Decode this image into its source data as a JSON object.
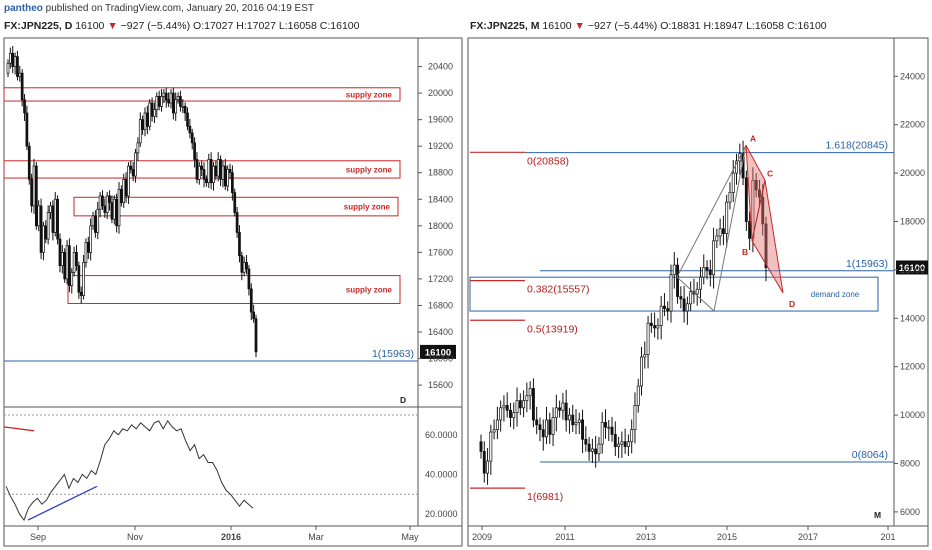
{
  "header": {
    "user": "pantheo",
    "published": "published on TradingView.com, January 20, 2016 04:19 EST"
  },
  "colors": {
    "red": "#c62828",
    "blue": "#2962a8",
    "axis": "#444444",
    "candle_up": "#ffffff",
    "candle_down": "#111111"
  },
  "chart_data": [
    {
      "type": "candlestick",
      "panel": "daily",
      "title": {
        "symbol": "FX:JPN225, D",
        "last": "16100",
        "change": "−927 (−5.44%)",
        "open": "O:17027",
        "high": "H:17027",
        "low": "L:16058",
        "close": "C:16100"
      },
      "ylim": [
        15300,
        20800
      ],
      "y_ticks": [
        "20400",
        "20000",
        "19600",
        "19200",
        "18800",
        "18400",
        "18000",
        "17600",
        "17200",
        "16800",
        "16400",
        "16000",
        "15600"
      ],
      "x_ticks": [
        "Sep",
        "Nov",
        "2016",
        "Mar",
        "May"
      ],
      "current_price": "16100",
      "level_line": {
        "label": "1(15963)",
        "value": 15963
      },
      "supply_zones": [
        {
          "label": "supply zone",
          "from": 19880,
          "to": 20080
        },
        {
          "label": "supply zone",
          "from": 18720,
          "to": 18980
        },
        {
          "label": "supply zone",
          "from": 18150,
          "to": 18430
        },
        {
          "label": "supply zone",
          "from": 16830,
          "to": 17250
        }
      ],
      "markers": [
        "D"
      ],
      "series_close": [
        20450,
        20600,
        20400,
        20550,
        20250,
        20300,
        19900,
        19700,
        19200,
        18700,
        18300,
        18900,
        18000,
        18300,
        17600,
        18000,
        17800,
        18200,
        18300,
        17900,
        18400,
        17800,
        17400,
        17600,
        17200,
        17700,
        17100,
        17300,
        17600,
        17400,
        17000,
        16950,
        17450,
        17750,
        17600,
        18000,
        18150,
        17900,
        18250,
        18450,
        18300,
        18200,
        18450,
        18350,
        18100,
        18400,
        18000,
        18550,
        18350,
        18700,
        18450,
        18900,
        18850,
        18750,
        19100,
        19250,
        19600,
        19450,
        19700,
        19500,
        19850,
        19650,
        19750,
        19950,
        19800,
        19950,
        20000,
        19900,
        19850,
        20000,
        19700,
        19900,
        19950,
        19800,
        19800,
        19700,
        19500,
        19400,
        19250,
        19000,
        18700,
        18900,
        18850,
        18700,
        18650,
        19000,
        18650,
        18900,
        18750,
        19000,
        18700,
        18900,
        18600,
        18850,
        18800,
        18500,
        18200,
        17900,
        17550,
        17300,
        17450,
        17350,
        17050,
        16700,
        16600,
        16100
      ]
    },
    {
      "type": "line",
      "panel": "oscillator",
      "y_ticks": [
        "60.0000",
        "40.0000",
        "20.0000"
      ],
      "ylim": [
        15,
        72
      ],
      "values": [
        34,
        29,
        25,
        20,
        17,
        23,
        26,
        28,
        25,
        27,
        31,
        34,
        37,
        40,
        33,
        38,
        36,
        40,
        38,
        42,
        40,
        47,
        55,
        58,
        62,
        60,
        63,
        62,
        65,
        63,
        66,
        64,
        62,
        66,
        67,
        63,
        67,
        64,
        62,
        63,
        57,
        52,
        55,
        48,
        50,
        46,
        46,
        42,
        36,
        32,
        30,
        27,
        24,
        27,
        25,
        23
      ]
    },
    {
      "type": "candlestick",
      "panel": "monthly",
      "title": {
        "symbol": "FX:JPN225, M",
        "last": "16100",
        "change": "−927 (−5.44%)",
        "open": "O:18831",
        "high": "H:18947",
        "low": "L:16058",
        "close": "C:16100"
      },
      "ylim": [
        5500,
        25500
      ],
      "y_ticks": [
        "24000",
        "22000",
        "20000",
        "18000",
        "16000",
        "14000",
        "12000",
        "10000",
        "8000",
        "6000"
      ],
      "x_ticks": [
        "2009",
        "2011",
        "2013",
        "2015",
        "2017",
        "201"
      ],
      "current_price": "16100",
      "fib_red": [
        {
          "label": "0(20858)",
          "value": 20858
        },
        {
          "label": "0.382(15557)",
          "value": 15557
        },
        {
          "label": "0.5(13919)",
          "value": 13919
        },
        {
          "label": "1(6981)",
          "value": 6981
        }
      ],
      "fib_blue": [
        {
          "label": "1.618(20845)",
          "value": 20845
        },
        {
          "label": "1(15963)",
          "value": 15963
        },
        {
          "label": "0(8064)",
          "value": 8064
        }
      ],
      "demand_zone": {
        "label": "demand zone",
        "from": 14300,
        "to": 15700
      },
      "pattern_points": [
        "A",
        "B",
        "C",
        "D"
      ],
      "markers": [
        "M"
      ],
      "series_close": [
        8500,
        7600,
        8100,
        9300,
        9400,
        9800,
        10300,
        10400,
        10200,
        9900,
        10100,
        10600,
        10300,
        10600,
        10800,
        11100,
        9800,
        9600,
        9400,
        9100,
        9800,
        9200,
        9900,
        10300,
        10200,
        10500,
        9800,
        10000,
        9600,
        9700,
        9800,
        9000,
        8800,
        8500,
        8600,
        8400,
        8800,
        9700,
        9500,
        9500,
        9200,
        8700,
        8800,
        8900,
        8700,
        8900,
        9400,
        10400,
        11200,
        12400,
        12500,
        13800,
        13700,
        13600,
        13700,
        14500,
        14400,
        14300,
        15800,
        16200,
        14900,
        14800,
        14300,
        14600,
        15100,
        15000,
        15200,
        15700,
        16100,
        16000,
        15800,
        17200,
        17400,
        17700,
        17500,
        18800,
        19200,
        20000,
        20500,
        20800,
        19800,
        18000,
        17300,
        19700,
        19300,
        19000,
        17900,
        16100
      ]
    }
  ]
}
